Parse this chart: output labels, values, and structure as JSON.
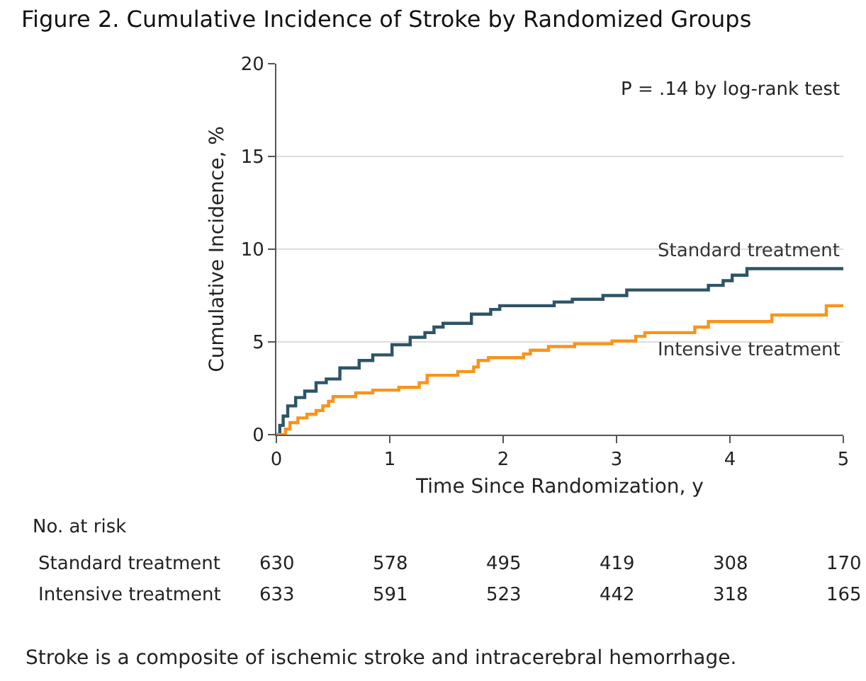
{
  "chart_data": {
    "type": "step",
    "title": "Figure 2. Cumulative Incidence of Stroke by Randomized Groups",
    "xlabel": "Time Since Randomization, y",
    "ylabel": "Cumulative Incidence, %",
    "xlim": [
      0,
      5
    ],
    "xticks": [
      0,
      1,
      2,
      3,
      4,
      5
    ],
    "ylim": [
      0,
      20
    ],
    "yticks": [
      0,
      5,
      10,
      15,
      20
    ],
    "grid": "y",
    "legend": false,
    "series": [
      {
        "name": "Standard treatment",
        "color": "#2e5466",
        "x": [
          0,
          0.03,
          0.06,
          0.1,
          0.17,
          0.25,
          0.35,
          0.44,
          0.56,
          0.73,
          0.85,
          1.02,
          1.18,
          1.31,
          1.39,
          1.47,
          1.72,
          1.89,
          1.97,
          2.45,
          2.61,
          2.88,
          3.09,
          3.81,
          3.94,
          4.02,
          4.15,
          5
        ],
        "values": [
          0,
          0.5,
          1.0,
          1.55,
          2.0,
          2.35,
          2.8,
          3.0,
          3.6,
          4.0,
          4.3,
          4.85,
          5.25,
          5.5,
          5.8,
          6.0,
          6.5,
          6.75,
          6.95,
          7.15,
          7.3,
          7.5,
          7.8,
          8.05,
          8.3,
          8.6,
          8.95,
          8.95
        ]
      },
      {
        "name": "Intensive treatment",
        "color": "#f7941d",
        "x": [
          0,
          0.08,
          0.12,
          0.19,
          0.27,
          0.35,
          0.41,
          0.46,
          0.5,
          0.7,
          0.85,
          1.08,
          1.26,
          1.33,
          1.6,
          1.74,
          1.78,
          1.87,
          2.18,
          2.24,
          2.4,
          2.63,
          2.96,
          3.17,
          3.25,
          3.69,
          3.81,
          4.37,
          4.85,
          5
        ],
        "values": [
          0,
          0.3,
          0.65,
          0.9,
          1.1,
          1.3,
          1.55,
          1.8,
          2.05,
          2.25,
          2.4,
          2.55,
          2.8,
          3.2,
          3.4,
          3.65,
          4.0,
          4.15,
          4.35,
          4.55,
          4.75,
          4.9,
          5.05,
          5.3,
          5.5,
          5.8,
          6.1,
          6.45,
          6.95,
          6.95
        ]
      }
    ],
    "annotations": [
      "P = .14 by log-rank test",
      "No. at risk",
      "Standard treatment",
      "630",
      "578",
      "495",
      "419",
      "308",
      "170",
      "Intensive treatment",
      "633",
      "591",
      "523",
      "442",
      "318",
      "165",
      "Stroke is a composite of ischemic stroke and intracerebral hemorrhage."
    ]
  }
}
